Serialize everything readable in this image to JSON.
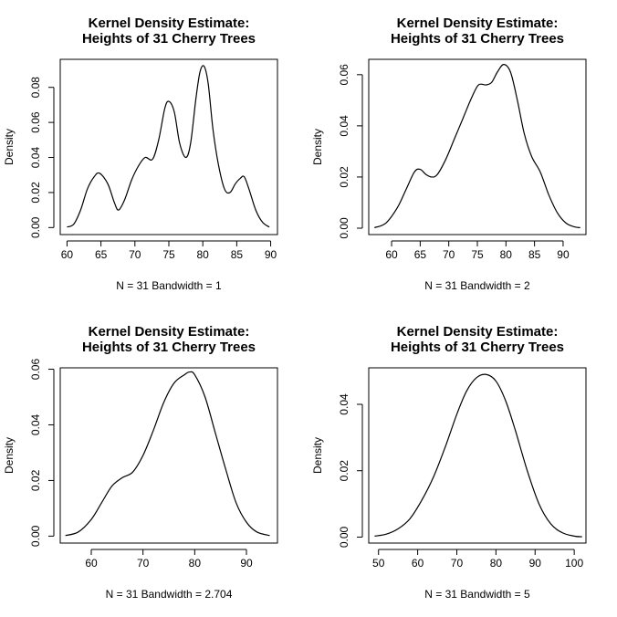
{
  "chart_data": [
    {
      "type": "line",
      "title": "Kernel Density Estimate:\nHeights of 31 Cherry Trees",
      "xlabel": "N = 31   Bandwidth = 1",
      "ylabel": "Density",
      "xlim": [
        59,
        91
      ],
      "ylim": [
        -0.004,
        0.096
      ],
      "x_ticks": [
        60,
        65,
        70,
        75,
        80,
        85,
        90
      ],
      "y_ticks": [
        0.0,
        0.02,
        0.04,
        0.06,
        0.08
      ],
      "y_tick_labels": [
        "0.00",
        "0.02",
        "0.04",
        "0.06",
        "0.08"
      ],
      "grid": false,
      "x": [
        60,
        61,
        62,
        63,
        64,
        64.8,
        66,
        67,
        67.6,
        68.5,
        69.5,
        70.5,
        71.5,
        72.6,
        73.5,
        74.4,
        75.0,
        75.8,
        76.6,
        77.5,
        78.2,
        79.0,
        79.6,
        80.2,
        80.8,
        81.5,
        82.3,
        83.2,
        84.0,
        84.8,
        85.5,
        86.1,
        86.8,
        87.8,
        88.8,
        89.8
      ],
      "y": [
        0.0003,
        0.002,
        0.01,
        0.022,
        0.029,
        0.031,
        0.025,
        0.014,
        0.01,
        0.016,
        0.027,
        0.035,
        0.04,
        0.039,
        0.05,
        0.068,
        0.072,
        0.066,
        0.048,
        0.04,
        0.048,
        0.074,
        0.089,
        0.092,
        0.082,
        0.056,
        0.036,
        0.022,
        0.02,
        0.025,
        0.028,
        0.029,
        0.022,
        0.01,
        0.003,
        0.0003
      ]
    },
    {
      "type": "line",
      "title": "Kernel Density Estimate:\nHeights of 31 Cherry Trees",
      "xlabel": "N = 31   Bandwidth = 2",
      "ylabel": "Density",
      "xlim": [
        56,
        94
      ],
      "ylim": [
        -0.0025,
        0.066
      ],
      "x_ticks": [
        60,
        65,
        70,
        75,
        80,
        85,
        90
      ],
      "y_ticks": [
        0.0,
        0.02,
        0.04,
        0.06
      ],
      "y_tick_labels": [
        "0.00",
        "0.02",
        "0.04",
        "0.06"
      ],
      "grid": false,
      "x": [
        57,
        59,
        61,
        62.5,
        64,
        65,
        66,
        67,
        68,
        69.5,
        71,
        72.5,
        74,
        75.2,
        76.5,
        77.5,
        78.5,
        79.6,
        80.8,
        82,
        83.2,
        84.5,
        86,
        87.5,
        89,
        90.5,
        92,
        93
      ],
      "y": [
        0.0002,
        0.002,
        0.008,
        0.015,
        0.022,
        0.023,
        0.021,
        0.02,
        0.021,
        0.027,
        0.035,
        0.043,
        0.051,
        0.056,
        0.056,
        0.057,
        0.061,
        0.064,
        0.061,
        0.05,
        0.037,
        0.028,
        0.022,
        0.013,
        0.006,
        0.002,
        0.0005,
        0.0002
      ]
    },
    {
      "type": "line",
      "title": "Kernel Density Estimate:\nHeights of 31 Cherry Trees",
      "xlabel": "N = 31   Bandwidth = 2.704",
      "ylabel": "Density",
      "xlim": [
        54,
        96
      ],
      "ylim": [
        -0.0025,
        0.0605
      ],
      "x_ticks": [
        60,
        70,
        80,
        90
      ],
      "y_ticks": [
        0.0,
        0.02,
        0.04,
        0.06
      ],
      "y_tick_labels": [
        "0.00",
        "0.02",
        "0.04",
        "0.06"
      ],
      "grid": false,
      "x": [
        55,
        57.5,
        60,
        62,
        64,
        66,
        68,
        70,
        72,
        74,
        76,
        78,
        79,
        80,
        82,
        84,
        86,
        88,
        90,
        92,
        94.5
      ],
      "y": [
        0.0002,
        0.0015,
        0.006,
        0.012,
        0.018,
        0.021,
        0.023,
        0.029,
        0.038,
        0.048,
        0.055,
        0.058,
        0.059,
        0.058,
        0.05,
        0.037,
        0.024,
        0.012,
        0.005,
        0.0015,
        0.0002
      ]
    },
    {
      "type": "line",
      "title": "Kernel Density Estimate:\nHeights of 31 Cherry Trees",
      "xlabel": "N = 31   Bandwidth = 5",
      "ylabel": "Density",
      "xlim": [
        47.5,
        103
      ],
      "ylim": [
        -0.0018,
        0.051
      ],
      "x_ticks": [
        50,
        60,
        70,
        80,
        90,
        100
      ],
      "y_ticks": [
        0.0,
        0.02,
        0.04
      ],
      "y_tick_labels": [
        "0.00",
        "0.02",
        "0.04"
      ],
      "grid": false,
      "x": [
        49,
        52,
        55,
        58,
        61,
        64,
        67,
        70,
        72.5,
        75,
        77.5,
        80,
        82.5,
        85,
        88,
        91,
        94,
        97,
        100,
        102
      ],
      "y": [
        0.0003,
        0.0009,
        0.0025,
        0.0055,
        0.011,
        0.018,
        0.027,
        0.037,
        0.044,
        0.048,
        0.049,
        0.047,
        0.041,
        0.032,
        0.02,
        0.01,
        0.004,
        0.0013,
        0.0003,
        0.0001
      ]
    }
  ]
}
